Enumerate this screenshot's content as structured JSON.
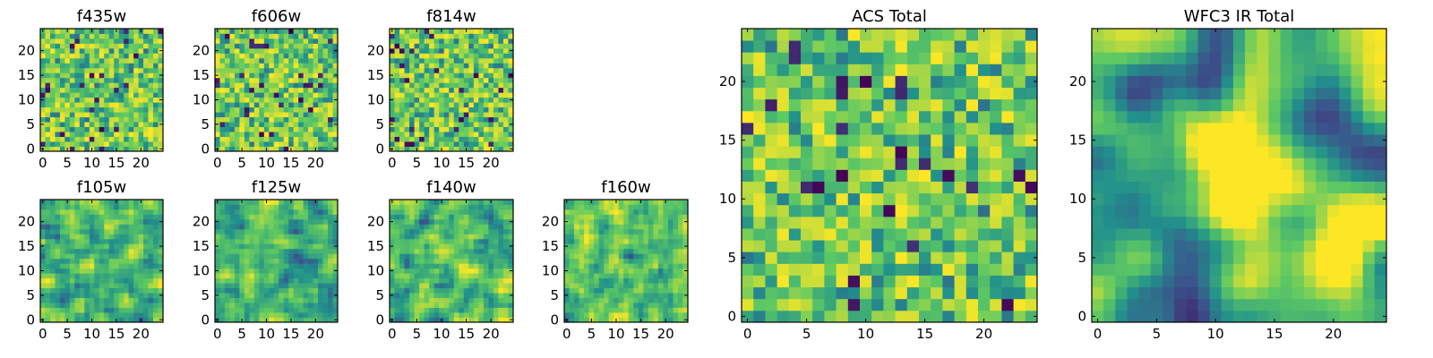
{
  "figure": {
    "colormap": [
      "#440154",
      "#3b528b",
      "#21918c",
      "#5ec962",
      "#fde725"
    ],
    "background": "#ffffff"
  },
  "chart_data": [
    {
      "type": "heatmap",
      "title": "f435w",
      "grid_size": 25,
      "xticks": [
        0,
        5,
        10,
        15,
        20
      ],
      "yticks": [
        0,
        5,
        10,
        15,
        20
      ],
      "xlim": [
        -0.5,
        24.5
      ],
      "ylim": [
        -0.5,
        24.5
      ],
      "texture": "noise",
      "value_range": [
        0,
        1
      ]
    },
    {
      "type": "heatmap",
      "title": "f606w",
      "grid_size": 25,
      "xticks": [
        0,
        5,
        10,
        15,
        20
      ],
      "yticks": [
        0,
        5,
        10,
        15,
        20
      ],
      "xlim": [
        -0.5,
        24.5
      ],
      "ylim": [
        -0.5,
        24.5
      ],
      "texture": "noise",
      "value_range": [
        0,
        1
      ]
    },
    {
      "type": "heatmap",
      "title": "f814w",
      "grid_size": 25,
      "xticks": [
        0,
        5,
        10,
        15,
        20
      ],
      "yticks": [
        0,
        5,
        10,
        15,
        20
      ],
      "xlim": [
        -0.5,
        24.5
      ],
      "ylim": [
        -0.5,
        24.5
      ],
      "texture": "noise",
      "value_range": [
        0,
        1
      ]
    },
    {
      "type": "heatmap",
      "title": "f105w",
      "grid_size": 25,
      "xticks": [
        0,
        5,
        10,
        15,
        20
      ],
      "yticks": [
        0,
        5,
        10,
        15,
        20
      ],
      "xlim": [
        -0.5,
        24.5
      ],
      "ylim": [
        -0.5,
        24.5
      ],
      "texture": "smooth",
      "value_range": [
        0,
        1
      ]
    },
    {
      "type": "heatmap",
      "title": "f125w",
      "grid_size": 25,
      "xticks": [
        0,
        5,
        10,
        15,
        20
      ],
      "yticks": [
        0,
        5,
        10,
        15,
        20
      ],
      "xlim": [
        -0.5,
        24.5
      ],
      "ylim": [
        -0.5,
        24.5
      ],
      "texture": "smooth",
      "value_range": [
        0,
        1
      ]
    },
    {
      "type": "heatmap",
      "title": "f140w",
      "grid_size": 25,
      "xticks": [
        0,
        5,
        10,
        15,
        20
      ],
      "yticks": [
        0,
        5,
        10,
        15,
        20
      ],
      "xlim": [
        -0.5,
        24.5
      ],
      "ylim": [
        -0.5,
        24.5
      ],
      "texture": "smooth",
      "value_range": [
        0,
        1
      ]
    },
    {
      "type": "heatmap",
      "title": "f160w",
      "grid_size": 25,
      "xticks": [
        0,
        5,
        10,
        15,
        20
      ],
      "yticks": [
        0,
        5,
        10,
        15,
        20
      ],
      "xlim": [
        -0.5,
        24.5
      ],
      "ylim": [
        -0.5,
        24.5
      ],
      "texture": "smooth",
      "value_range": [
        0,
        1
      ]
    },
    {
      "type": "heatmap",
      "title": "ACS Total",
      "grid_size": 25,
      "xticks": [
        0,
        5,
        10,
        15,
        20
      ],
      "yticks": [
        0,
        5,
        10,
        15,
        20
      ],
      "xlim": [
        -0.5,
        24.5
      ],
      "ylim": [
        -0.5,
        24.5
      ],
      "texture": "noise",
      "value_range": [
        0,
        1
      ]
    },
    {
      "type": "heatmap",
      "title": "WFC3 IR Total",
      "grid_size": 25,
      "xticks": [
        0,
        5,
        10,
        15,
        20
      ],
      "yticks": [
        0,
        5,
        10,
        15,
        20
      ],
      "xlim": [
        -0.5,
        24.5
      ],
      "ylim": [
        -0.5,
        24.5
      ],
      "texture": "blobs",
      "value_range": [
        0,
        1
      ]
    }
  ]
}
